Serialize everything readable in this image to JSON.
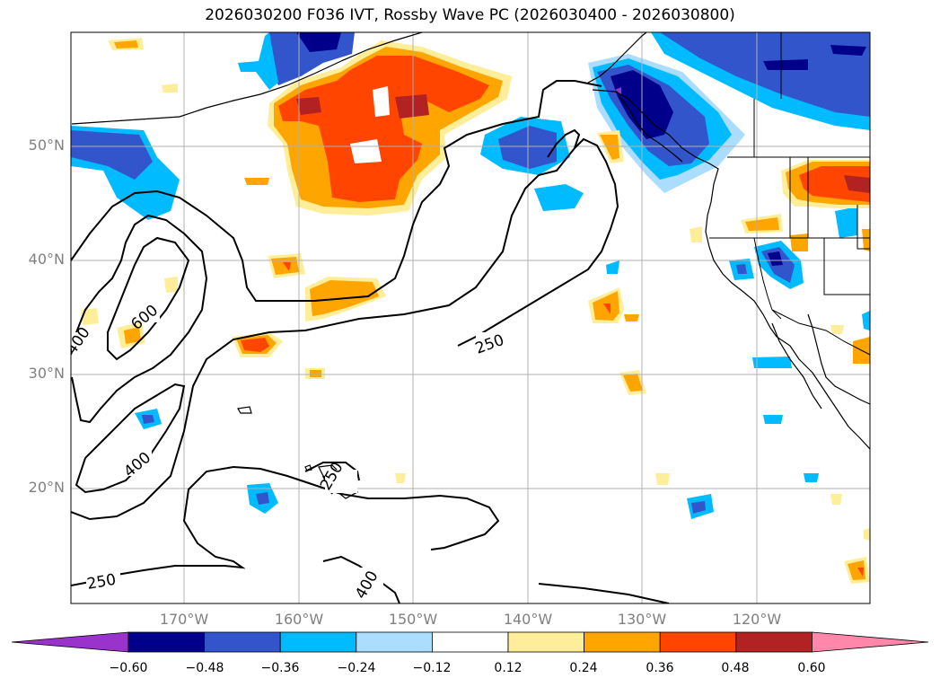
{
  "title": "2026030200 F036 IVT, Rossby Wave PC (2026030400 - 2026030800)",
  "lat_labels": [
    "50°N",
    "40°N",
    "30°N",
    "20°N"
  ],
  "lon_labels": [
    "170°W",
    "160°W",
    "150°W",
    "140°W",
    "130°W",
    "120°W"
  ],
  "contour_labels": [
    "400",
    "600",
    "250",
    "400",
    "250",
    "250",
    "400"
  ],
  "colorbar": {
    "ticks": [
      "−0.60",
      "−0.48",
      "−0.36",
      "−0.24",
      "−0.12",
      "0.12",
      "0.24",
      "0.36",
      "0.48",
      "0.60"
    ],
    "colors": [
      "#9933cc",
      "#00008b",
      "#3355cc",
      "#00bbff",
      "#aaddff",
      "#ffffff",
      "#ffee99",
      "#ffa500",
      "#ff4500",
      "#b22222",
      "#ff88aa"
    ]
  }
}
